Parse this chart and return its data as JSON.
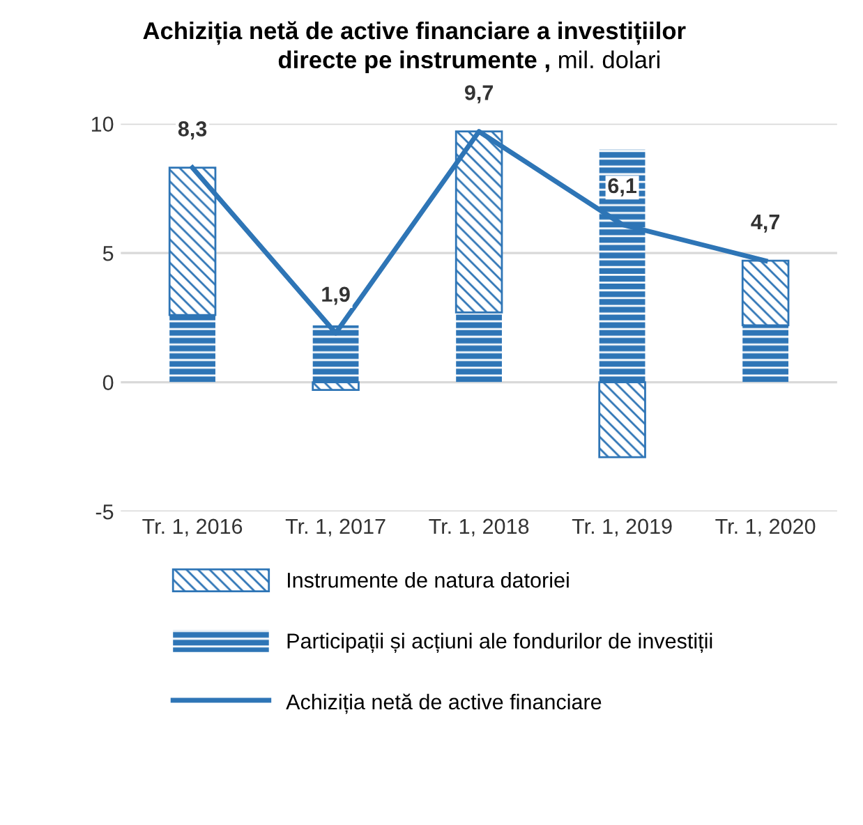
{
  "chart_data": {
    "type": "bar",
    "stacked": true,
    "title": "Achiziția netă de active financiare a investițiilor\ndirecte pe instrumente ,",
    "subtitle": "mil. dolari",
    "categories": [
      "Tr. 1, 2016",
      "Tr. 1, 2017",
      "Tr. 1, 2018",
      "Tr. 1, 2019",
      "Tr. 1, 2020"
    ],
    "series": [
      {
        "name": "Participații și acțiuni ale fondurilor de investiții",
        "color": "#2e75b6",
        "values": [
          2.6,
          2.2,
          2.7,
          9.0,
          2.2
        ]
      },
      {
        "name": "Instrumente de natura datoriei",
        "color": "#2e75b6",
        "values": [
          5.7,
          -0.3,
          7.0,
          -2.9,
          2.5
        ]
      },
      {
        "name": "Achiziția netă de active financiare",
        "type": "line",
        "color": "#2e75b6",
        "values": [
          8.3,
          1.9,
          9.7,
          6.1,
          4.7
        ],
        "value_labels": [
          "8,3",
          "1,9",
          "9,7",
          "6,1",
          "4,7"
        ]
      }
    ],
    "ylim": [
      -5,
      10
    ],
    "yticks": [
      -5,
      0,
      5,
      10
    ],
    "grid": "y",
    "legend": "bottom"
  }
}
